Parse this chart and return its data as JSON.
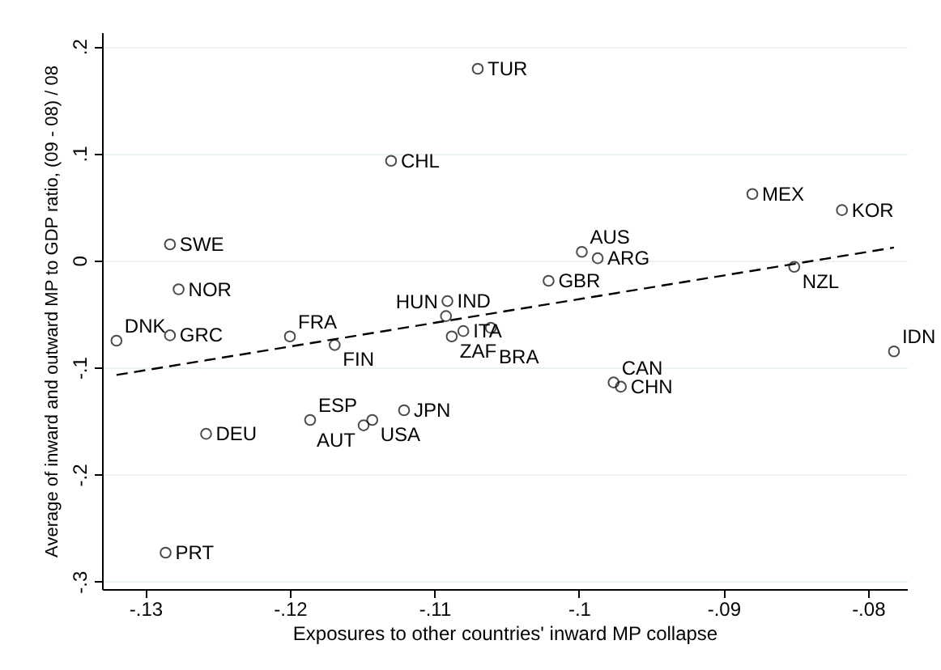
{
  "chart_data": {
    "type": "scatter",
    "xlabel": "Exposures to other countries' inward MP collapse",
    "ylabel": "Average of inward and outward MP to GDP ratio, (09 - 08) / 08",
    "xlim": [
      -0.133,
      -0.0773
    ],
    "ylim": [
      -0.307,
      0.213
    ],
    "xticks": [
      {
        "value": -0.13,
        "label": "-.13"
      },
      {
        "value": -0.12,
        "label": "-.12"
      },
      {
        "value": -0.11,
        "label": "-.11"
      },
      {
        "value": -0.1,
        "label": "-.1"
      },
      {
        "value": -0.09,
        "label": "-.09"
      },
      {
        "value": -0.08,
        "label": "-.08"
      }
    ],
    "yticks": [
      {
        "value": -0.3,
        "label": "-.3"
      },
      {
        "value": -0.2,
        "label": "-.2"
      },
      {
        "value": -0.1,
        "label": "-.1"
      },
      0,
      {
        "value": 0.1,
        "label": ".1"
      },
      {
        "value": 0.2,
        "label": ".2"
      }
    ],
    "grid": "y",
    "series": [
      {
        "color": "#000000",
        "marker": "circle",
        "x": [
          -0.107,
          -0.113,
          -0.1283,
          -0.1277,
          -0.132,
          -0.1283,
          -0.12,
          -0.1169,
          -0.1091,
          -0.1092,
          -0.1088,
          -0.108,
          -0.1061,
          -0.1186,
          -0.1143,
          -0.1149,
          -0.1121,
          -0.1258,
          -0.1286,
          -0.0998,
          -0.0987,
          -0.1021,
          -0.088,
          -0.0818,
          -0.0851,
          -0.0782,
          -0.0976,
          -0.0971
        ],
        "values": [
          0.179,
          0.093,
          0.015,
          -0.027,
          -0.075,
          -0.07,
          -0.071,
          -0.079,
          -0.038,
          -0.052,
          -0.071,
          -0.066,
          -0.063,
          -0.149,
          -0.149,
          -0.154,
          -0.14,
          -0.162,
          -0.273,
          0.008,
          0.002,
          -0.019,
          0.062,
          0.047,
          -0.006,
          -0.085,
          -0.114,
          -0.118
        ],
        "value_labels": [
          "TUR",
          "CHL",
          "SWE",
          "NOR",
          "DNK",
          "GRC",
          "FRA",
          "FIN",
          "IND",
          "HUN",
          "ZAF",
          "ITA",
          "BRA",
          "ESP",
          "USA",
          "AUT",
          "JPN",
          "DEU",
          "PRT",
          "AUS",
          "ARG",
          "GBR",
          "MEX",
          "KOR",
          "NZL",
          "IDN",
          "CAN",
          "CHN"
        ]
      },
      {
        "type": "line",
        "color": "#000000",
        "line_style": "dashed",
        "x": [
          -0.132,
          -0.0782
        ],
        "values": [
          -0.107,
          0.012
        ]
      }
    ]
  }
}
